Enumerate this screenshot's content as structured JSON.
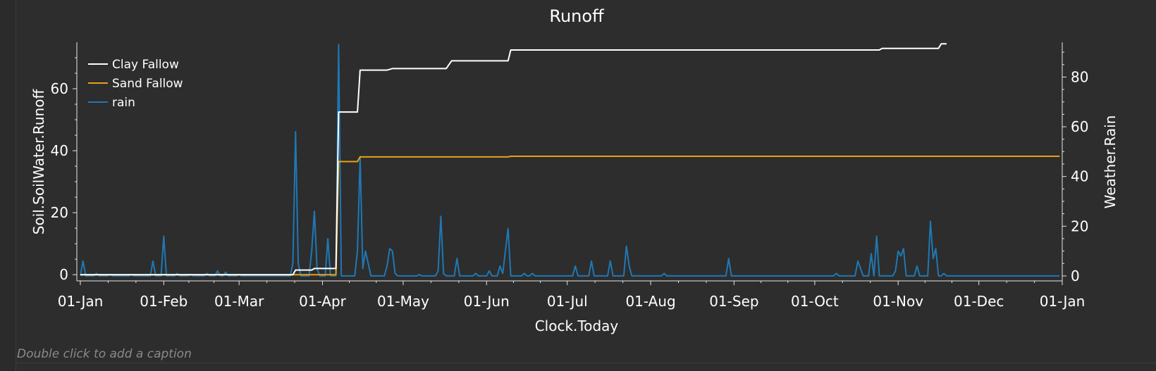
{
  "chart_data": {
    "type": "line",
    "title": "Runoff",
    "xlabel": "Clock.Today",
    "ylabel_left": "Soil.SoilWater.Runoff",
    "ylabel_right": "Weather.Rain",
    "x_ticks": [
      "01-Jan",
      "01-Feb",
      "01-Mar",
      "01-Apr",
      "01-May",
      "01-Jun",
      "01-Jul",
      "01-Aug",
      "01-Sep",
      "01-Oct",
      "01-Nov",
      "01-Dec",
      "01-Jan"
    ],
    "x_range": [
      "01-Jan",
      "31-Dec"
    ],
    "y_left_range": [
      -2,
      75
    ],
    "y_left_ticks": [
      "0",
      "20",
      "40",
      "60"
    ],
    "y_right_range": [
      -2,
      94
    ],
    "y_right_ticks": [
      "0",
      "20",
      "40",
      "60",
      "80"
    ],
    "legend_position": "top-left",
    "colors": {
      "clay": "#ffffff",
      "sand": "#e8a018",
      "rain": "#1f78b4"
    },
    "series": [
      {
        "name": "Clay Fallow",
        "axis": "left",
        "line": "step",
        "points": [
          [
            0,
            0
          ],
          [
            79,
            0
          ],
          [
            80,
            1.5
          ],
          [
            86,
            1.5
          ],
          [
            87,
            2
          ],
          [
            95,
            2
          ],
          [
            96,
            52.5
          ],
          [
            103,
            52.5
          ],
          [
            104,
            66
          ],
          [
            114,
            66
          ],
          [
            116,
            66.5
          ],
          [
            136,
            66.5
          ],
          [
            138,
            69
          ],
          [
            159,
            69
          ],
          [
            160,
            72.5
          ],
          [
            297,
            72.5
          ],
          [
            298,
            73
          ],
          [
            319,
            73
          ],
          [
            320,
            74.5
          ],
          [
            322,
            74.5
          ]
        ]
      },
      {
        "name": "Sand Fallow",
        "axis": "left",
        "line": "step",
        "points": [
          [
            0,
            0
          ],
          [
            95,
            0
          ],
          [
            96,
            36.5
          ],
          [
            103,
            36.5
          ],
          [
            104,
            38
          ],
          [
            159,
            38
          ],
          [
            160,
            38.2
          ],
          [
            364,
            38.2
          ]
        ]
      },
      {
        "name": "rain",
        "axis": "right",
        "line": "line",
        "points": [
          [
            0,
            0
          ],
          [
            1,
            6
          ],
          [
            2,
            0
          ],
          [
            5,
            0
          ],
          [
            6,
            1
          ],
          [
            7,
            0
          ],
          [
            10,
            0
          ],
          [
            11,
            0.5
          ],
          [
            12,
            0
          ],
          [
            18,
            0
          ],
          [
            19,
            0.5
          ],
          [
            20,
            0
          ],
          [
            26,
            0
          ],
          [
            27,
            6
          ],
          [
            28,
            0
          ],
          [
            30,
            0
          ],
          [
            31,
            16
          ],
          [
            32,
            0
          ],
          [
            35,
            0
          ],
          [
            36,
            1
          ],
          [
            37,
            0
          ],
          [
            40,
            0
          ],
          [
            41,
            0.5
          ],
          [
            42,
            0
          ],
          [
            46,
            0
          ],
          [
            47,
            1
          ],
          [
            48,
            0
          ],
          [
            50,
            0
          ],
          [
            51,
            2
          ],
          [
            52,
            0
          ],
          [
            53,
            0
          ],
          [
            54,
            1.5
          ],
          [
            55,
            0
          ],
          [
            58,
            0
          ],
          [
            59,
            0.5
          ],
          [
            60,
            0
          ],
          [
            78,
            0
          ],
          [
            79,
            5
          ],
          [
            80,
            58
          ],
          [
            81,
            5
          ],
          [
            82,
            0
          ],
          [
            85,
            0
          ],
          [
            86,
            10
          ],
          [
            87,
            26
          ],
          [
            88,
            3
          ],
          [
            89,
            0
          ],
          [
            91,
            0
          ],
          [
            92,
            15
          ],
          [
            93,
            0
          ],
          [
            95,
            0
          ],
          [
            96,
            93
          ],
          [
            97,
            0
          ],
          [
            102,
            0
          ],
          [
            103,
            10
          ],
          [
            104,
            48
          ],
          [
            105,
            3
          ],
          [
            106,
            10
          ],
          [
            107,
            5
          ],
          [
            108,
            0
          ],
          [
            113,
            0
          ],
          [
            114,
            4
          ],
          [
            115,
            11
          ],
          [
            116,
            10
          ],
          [
            117,
            1
          ],
          [
            118,
            0
          ],
          [
            125,
            0
          ],
          [
            126,
            0.5
          ],
          [
            127,
            0
          ],
          [
            132,
            0
          ],
          [
            133,
            2
          ],
          [
            134,
            24
          ],
          [
            135,
            1
          ],
          [
            136,
            0
          ],
          [
            139,
            0
          ],
          [
            140,
            7
          ],
          [
            141,
            0
          ],
          [
            146,
            0
          ],
          [
            147,
            1
          ],
          [
            148,
            0
          ],
          [
            151,
            0
          ],
          [
            152,
            2
          ],
          [
            153,
            0
          ],
          [
            155,
            0
          ],
          [
            156,
            4
          ],
          [
            157,
            1
          ],
          [
            158,
            10
          ],
          [
            159,
            19
          ],
          [
            160,
            0
          ],
          [
            164,
            0
          ],
          [
            165,
            1
          ],
          [
            166,
            0
          ],
          [
            167,
            0
          ],
          [
            168,
            1
          ],
          [
            169,
            0
          ],
          [
            183,
            0
          ],
          [
            184,
            4
          ],
          [
            185,
            0
          ],
          [
            189,
            0
          ],
          [
            190,
            6
          ],
          [
            191,
            0
          ],
          [
            196,
            0
          ],
          [
            197,
            6
          ],
          [
            198,
            0
          ],
          [
            202,
            0
          ],
          [
            203,
            12
          ],
          [
            204,
            4
          ],
          [
            205,
            0
          ],
          [
            216,
            0
          ],
          [
            217,
            1
          ],
          [
            218,
            0
          ],
          [
            240,
            0
          ],
          [
            241,
            7
          ],
          [
            242,
            0
          ],
          [
            280,
            0
          ],
          [
            281,
            1
          ],
          [
            282,
            0
          ],
          [
            288,
            0
          ],
          [
            289,
            6
          ],
          [
            290,
            3
          ],
          [
            291,
            0
          ],
          [
            293,
            0
          ],
          [
            294,
            9
          ],
          [
            295,
            0
          ],
          [
            296,
            16
          ],
          [
            297,
            0
          ],
          [
            302,
            0
          ],
          [
            303,
            2
          ],
          [
            304,
            10
          ],
          [
            305,
            8
          ],
          [
            306,
            11
          ],
          [
            307,
            0
          ],
          [
            310,
            0
          ],
          [
            311,
            4
          ],
          [
            312,
            0
          ],
          [
            315,
            0
          ],
          [
            316,
            22
          ],
          [
            317,
            7
          ],
          [
            318,
            11
          ],
          [
            319,
            0
          ],
          [
            320,
            0
          ],
          [
            321,
            1
          ],
          [
            322,
            0
          ],
          [
            364,
            0
          ]
        ]
      }
    ]
  },
  "caption": "Double click to add a caption"
}
